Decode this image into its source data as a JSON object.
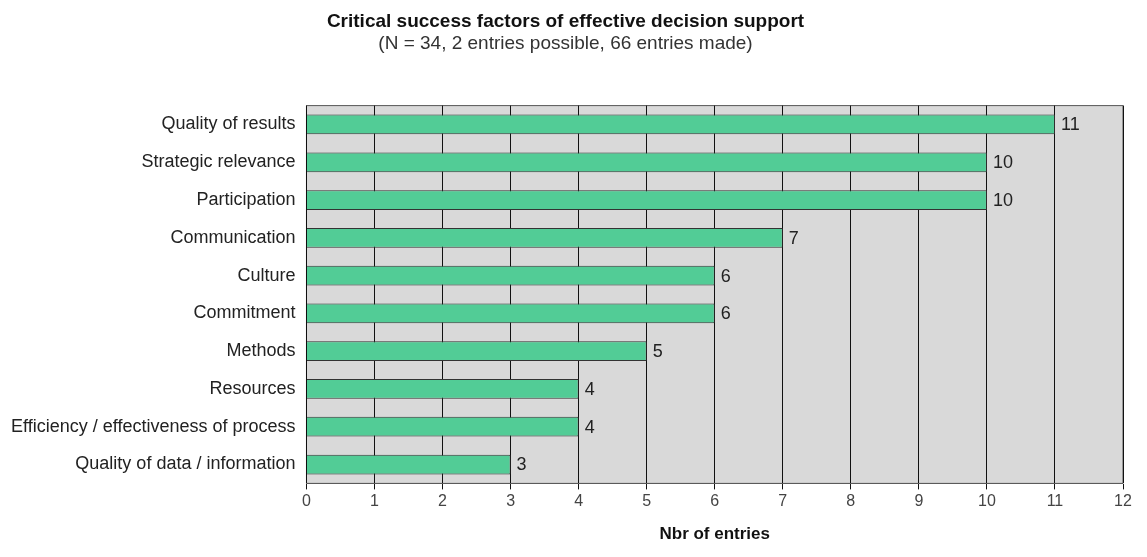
{
  "chart_data": {
    "type": "bar",
    "orientation": "horizontal",
    "title": "Critical success factors of effective decision support",
    "subtitle": "(N = 34, 2 entries possible, 66 entries made)",
    "xlabel": "Nbr of entries",
    "categories": [
      "Quality of results",
      "Strategic relevance",
      "Participation",
      "Communication",
      "Culture",
      "Commitment",
      "Methods",
      "Resources",
      "Efficiency / effectiveness of process",
      "Quality of data / information"
    ],
    "values": [
      11,
      10,
      10,
      7,
      6,
      6,
      5,
      4,
      4,
      3
    ],
    "color": "#52cc96",
    "xlim": [
      0,
      12
    ],
    "xticks": [
      0,
      1,
      2,
      3,
      4,
      5,
      6,
      7,
      8,
      9,
      10,
      11,
      12
    ],
    "grid": "x",
    "legend": false,
    "data_labels": true
  }
}
